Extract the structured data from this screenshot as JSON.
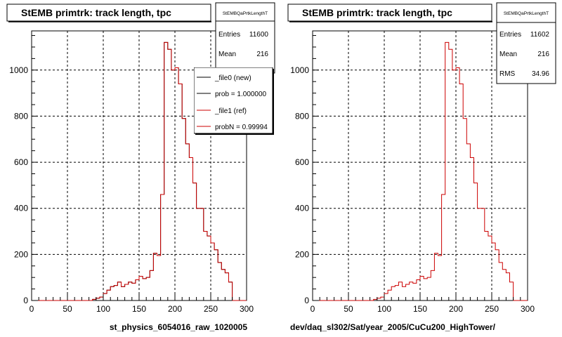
{
  "colors": {
    "background": "#ffffff",
    "new_histogram": "#000000",
    "ref_histogram": "#cc0000",
    "grid": "#000000"
  },
  "footer_text": "",
  "chart_data": [
    {
      "type": "histogram",
      "title": "StEMB primtrk: track length, tpc",
      "xlabel": "st_physics_6054016_raw_1020005",
      "ylabel": "",
      "xlim": [
        0,
        300
      ],
      "ylim": [
        0,
        1170
      ],
      "xticks": [
        "0",
        "50",
        "100",
        "150",
        "200",
        "250",
        "300"
      ],
      "yticks": [
        "0",
        "200",
        "400",
        "600",
        "800",
        "1000"
      ],
      "grid": true,
      "bin_width": 5,
      "bins": [
        0,
        5,
        10,
        15,
        20,
        25,
        30,
        35,
        40,
        45,
        50,
        55,
        60,
        65,
        70,
        75,
        80,
        85,
        90,
        95,
        100,
        105,
        110,
        115,
        120,
        125,
        130,
        135,
        140,
        145,
        150,
        155,
        160,
        165,
        170,
        175,
        180,
        185,
        190,
        195,
        200,
        205,
        210,
        215,
        220,
        225,
        230,
        235,
        240,
        245,
        250,
        255,
        260,
        265,
        270,
        275,
        280,
        285,
        290,
        295
      ],
      "series": [
        {
          "name": "_file0 (new)",
          "color": "#000000",
          "values": [
            0,
            0,
            0,
            0,
            0,
            0,
            0,
            0,
            0,
            0,
            0,
            0,
            0,
            0,
            0,
            0,
            0,
            5,
            10,
            15,
            30,
            45,
            60,
            65,
            80,
            60,
            70,
            80,
            75,
            90,
            105,
            95,
            100,
            130,
            205,
            195,
            460,
            1120,
            1090,
            1000,
            1010,
            940,
            790,
            680,
            620,
            510,
            400,
            400,
            300,
            280,
            250,
            220,
            165,
            135,
            120,
            80,
            0,
            0,
            0,
            0
          ]
        },
        {
          "name": "_file1 (ref)",
          "color": "#cc0000",
          "values": [
            0,
            0,
            0,
            0,
            0,
            0,
            0,
            0,
            0,
            0,
            0,
            0,
            0,
            0,
            0,
            0,
            0,
            5,
            10,
            15,
            30,
            45,
            60,
            65,
            80,
            60,
            70,
            80,
            75,
            90,
            105,
            95,
            100,
            130,
            205,
            195,
            460,
            1120,
            1090,
            1000,
            1010,
            940,
            790,
            680,
            620,
            510,
            400,
            400,
            300,
            280,
            250,
            220,
            165,
            135,
            120,
            80,
            0,
            0,
            0,
            0
          ]
        }
      ],
      "stats": {
        "name": "StEMBQaPrtkLengthT",
        "entries_label": "Entries",
        "entries": "11600",
        "mean_label": "Mean",
        "mean": "216"
      },
      "legend": {
        "placement": "top-right",
        "entries": [
          {
            "label": "_file0 (new)",
            "color": "#000000"
          },
          {
            "label": "prob = 1.000000",
            "color": "#000000"
          },
          {
            "label": "_file1 (ref)",
            "color": "#cc0000"
          },
          {
            "label": "probN = 0.99994",
            "color": "#cc0000"
          }
        ]
      }
    },
    {
      "type": "histogram",
      "title": "StEMB primtrk: track length, tpc",
      "xlabel": "dev/daq_sl302/Sat/year_2005/CuCu200_HighTower/",
      "ylabel": "",
      "xlim": [
        0,
        300
      ],
      "ylim": [
        0,
        1170
      ],
      "xticks": [
        "0",
        "50",
        "100",
        "150",
        "200",
        "250",
        "300"
      ],
      "yticks": [
        "0",
        "200",
        "400",
        "600",
        "800",
        "1000"
      ],
      "grid": true,
      "bin_width": 5,
      "bins": [
        0,
        5,
        10,
        15,
        20,
        25,
        30,
        35,
        40,
        45,
        50,
        55,
        60,
        65,
        70,
        75,
        80,
        85,
        90,
        95,
        100,
        105,
        110,
        115,
        120,
        125,
        130,
        135,
        140,
        145,
        150,
        155,
        160,
        165,
        170,
        175,
        180,
        185,
        190,
        195,
        200,
        205,
        210,
        215,
        220,
        225,
        230,
        235,
        240,
        245,
        250,
        255,
        260,
        265,
        270,
        275,
        280,
        285,
        290,
        295
      ],
      "series": [
        {
          "color": "#cc0000",
          "values": [
            0,
            0,
            0,
            0,
            0,
            0,
            0,
            0,
            0,
            0,
            0,
            0,
            0,
            0,
            0,
            0,
            0,
            5,
            10,
            15,
            30,
            45,
            60,
            65,
            80,
            60,
            70,
            80,
            75,
            90,
            105,
            95,
            100,
            130,
            205,
            195,
            460,
            1120,
            1090,
            1000,
            1010,
            940,
            790,
            680,
            620,
            510,
            400,
            400,
            300,
            280,
            250,
            220,
            165,
            135,
            120,
            80,
            0,
            0,
            0,
            0
          ]
        }
      ],
      "stats": {
        "name": "StEMBQaPrtkLengthT",
        "entries_label": "Entries",
        "entries": "11602",
        "mean_label": "Mean",
        "mean": "216",
        "rms_label": "RMS",
        "rms": "34.96"
      }
    }
  ]
}
